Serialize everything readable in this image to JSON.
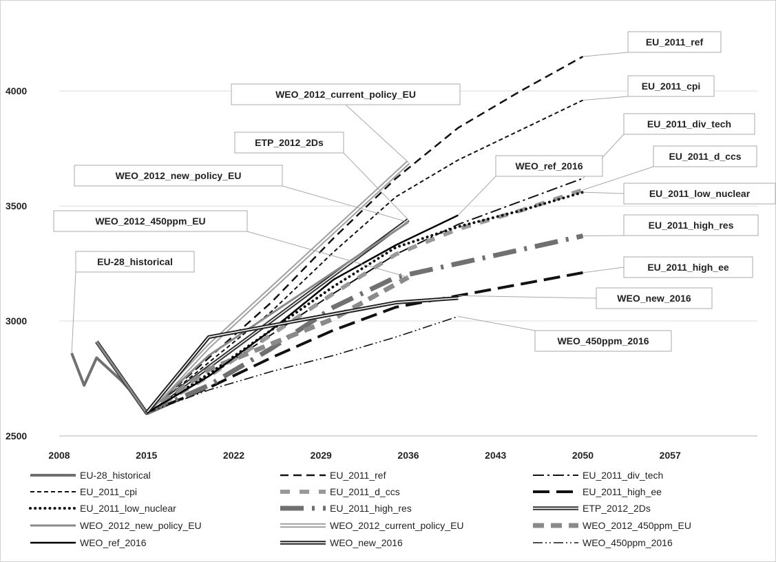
{
  "chart_data": {
    "type": "line",
    "title": "",
    "xlabel": "",
    "ylabel": "",
    "xlim": [
      2008,
      2064
    ],
    "ylim": [
      2500,
      4300
    ],
    "grid": true,
    "legend_position": "bottom",
    "x_ticks": [
      "2008",
      "2015",
      "2022",
      "2029",
      "2036",
      "2043",
      "2050",
      "2057"
    ],
    "y_ticks": [
      "2500",
      "3000",
      "3500",
      "4000"
    ],
    "series": [
      {
        "name": "EU-28_historical",
        "x": [
          2009,
          2010,
          2011,
          2012,
          2013,
          2014,
          2015
        ],
        "y": [
          2860,
          2720,
          2840,
          2790,
          2740,
          2680,
          2600
        ]
      },
      {
        "name": "EU_2011_ref",
        "x": [
          2015,
          2020,
          2025,
          2030,
          2035,
          2040,
          2045,
          2050
        ],
        "y": [
          2600,
          2840,
          3080,
          3360,
          3620,
          3840,
          4000,
          4150
        ]
      },
      {
        "name": "EU_2011_div_tech",
        "x": [
          2015,
          2020,
          2025,
          2030,
          2035,
          2040,
          2045,
          2050
        ],
        "y": [
          2600,
          2760,
          2940,
          3120,
          3290,
          3420,
          3520,
          3620
        ]
      },
      {
        "name": "EU_2011_cpi",
        "x": [
          2015,
          2020,
          2025,
          2030,
          2035,
          2040,
          2045,
          2050
        ],
        "y": [
          2600,
          2820,
          3040,
          3300,
          3540,
          3700,
          3830,
          3960
        ]
      },
      {
        "name": "EU_2011_d_ccs",
        "x": [
          2015,
          2020,
          2025,
          2030,
          2035,
          2040,
          2045,
          2050
        ],
        "y": [
          2600,
          2760,
          2940,
          3120,
          3290,
          3400,
          3480,
          3570
        ]
      },
      {
        "name": "EU_2011_high_ee",
        "x": [
          2015,
          2020,
          2025,
          2030,
          2035,
          2040,
          2045,
          2050
        ],
        "y": [
          2600,
          2710,
          2840,
          2960,
          3060,
          3110,
          3160,
          3210
        ]
      },
      {
        "name": "EU_2011_low_nuclear",
        "x": [
          2015,
          2020,
          2025,
          2030,
          2035,
          2040,
          2045,
          2050
        ],
        "y": [
          2600,
          2770,
          2960,
          3150,
          3320,
          3410,
          3480,
          3560
        ]
      },
      {
        "name": "EU_2011_high_res",
        "x": [
          2015,
          2020,
          2025,
          2030,
          2035,
          2040,
          2045,
          2050
        ],
        "y": [
          2600,
          2720,
          2880,
          3060,
          3190,
          3250,
          3310,
          3370
        ]
      },
      {
        "name": "ETP_2012_2Ds",
        "x": [
          2011,
          2015,
          2020,
          2036
        ],
        "y": [
          2910,
          2600,
          2800,
          3440
        ]
      },
      {
        "name": "WEO_2012_new_policy_EU",
        "x": [
          2011,
          2015,
          2020,
          2036
        ],
        "y": [
          2910,
          2600,
          2850,
          3430
        ]
      },
      {
        "name": "WEO_2012_current_policy_EU",
        "x": [
          2015,
          2020,
          2036
        ],
        "y": [
          2600,
          2890,
          3690
        ]
      },
      {
        "name": "WEO_2012_450ppm_EU",
        "x": [
          2015,
          2020,
          2030,
          2036
        ],
        "y": [
          2600,
          2790,
          3010,
          3190
        ]
      },
      {
        "name": "WEO_ref_2016",
        "x": [
          2015,
          2020,
          2025,
          2030,
          2035,
          2040
        ],
        "y": [
          2600,
          2760,
          2960,
          3180,
          3330,
          3460
        ]
      },
      {
        "name": "WEO_new_2016",
        "x": [
          2015,
          2020,
          2025,
          2030,
          2035,
          2040
        ],
        "y": [
          2600,
          2930,
          2980,
          3030,
          3080,
          3100
        ]
      },
      {
        "name": "WEO_450ppm_2016",
        "x": [
          2015,
          2020,
          2025,
          2030,
          2035,
          2040
        ],
        "y": [
          2600,
          2700,
          2780,
          2850,
          2930,
          3020
        ]
      }
    ],
    "callouts": [
      {
        "label": "EU_2011_ref",
        "target_x": 2050,
        "target_y": 4150
      },
      {
        "label": "EU_2011_cpi",
        "target_x": 2050,
        "target_y": 3960
      },
      {
        "label": "EU_2011_div_tech",
        "target_x": 2050,
        "target_y": 3620
      },
      {
        "label": "EU_2011_d_ccs",
        "target_x": 2050,
        "target_y": 3570
      },
      {
        "label": "EU_2011_low_nuclear",
        "target_x": 2050,
        "target_y": 3560
      },
      {
        "label": "EU_2011_high_res",
        "target_x": 2050,
        "target_y": 3370
      },
      {
        "label": "EU_2011_high_ee",
        "target_x": 2050,
        "target_y": 3210
      },
      {
        "label": "WEO_new_2016",
        "target_x": 2040,
        "target_y": 3110
      },
      {
        "label": "WEO_450ppm_2016",
        "target_x": 2040,
        "target_y": 3020
      },
      {
        "label": "WEO_ref_2016",
        "target_x": 2040,
        "target_y": 3460
      },
      {
        "label": "WEO_2012_current_policy_EU",
        "target_x": 2036,
        "target_y": 3690
      },
      {
        "label": "ETP_2012_2Ds",
        "target_x": 2036,
        "target_y": 3440
      },
      {
        "label": "WEO_2012_new_policy_EU",
        "target_x": 2036,
        "target_y": 3430
      },
      {
        "label": "WEO_2012_450ppm_EU",
        "target_x": 2036,
        "target_y": 3190
      },
      {
        "label": "EU-28_historical",
        "target_x": 2009,
        "target_y": 2860
      }
    ]
  },
  "styles": {
    "EU-28_historical": {
      "color": "#707070",
      "width": 4,
      "dash": ""
    },
    "EU_2011_ref": {
      "color": "#111111",
      "width": 2.5,
      "dash": "12,7"
    },
    "EU_2011_div_tech": {
      "color": "#111111",
      "width": 2,
      "dash": "16,5,3,5"
    },
    "EU_2011_cpi": {
      "color": "#111111",
      "width": 2,
      "dash": "6,4"
    },
    "EU_2011_d_ccs": {
      "color": "#999999",
      "width": 6,
      "dash": "14,14"
    },
    "EU_2011_high_ee": {
      "color": "#111111",
      "width": 4,
      "dash": "24,10"
    },
    "EU_2011_low_nuclear": {
      "color": "#111111",
      "width": 4,
      "dash": "0.1,7",
      "cap": "round"
    },
    "EU_2011_high_res": {
      "color": "#707070",
      "width": 7,
      "dash": "34,12,4,12"
    },
    "ETP_2012_2Ds": {
      "color": "#333333",
      "width": 4,
      "dash": "",
      "double": true
    },
    "WEO_2012_new_policy_EU": {
      "color": "#8a8a8a",
      "width": 3,
      "dash": ""
    },
    "WEO_2012_current_policy_EU": {
      "color": "#a0a0a0",
      "width": 5,
      "dash": "",
      "double": true
    },
    "WEO_2012_450ppm_EU": {
      "color": "#8a8a8a",
      "width": 7,
      "dash": "16,10"
    },
    "WEO_ref_2016": {
      "color": "#000000",
      "width": 2.5,
      "dash": ""
    },
    "WEO_new_2016": {
      "color": "#222222",
      "width": 4,
      "dash": "",
      "double": true
    },
    "WEO_450ppm_2016": {
      "color": "#111111",
      "width": 1.6,
      "dash": "14,4,2,4,2,4"
    }
  }
}
